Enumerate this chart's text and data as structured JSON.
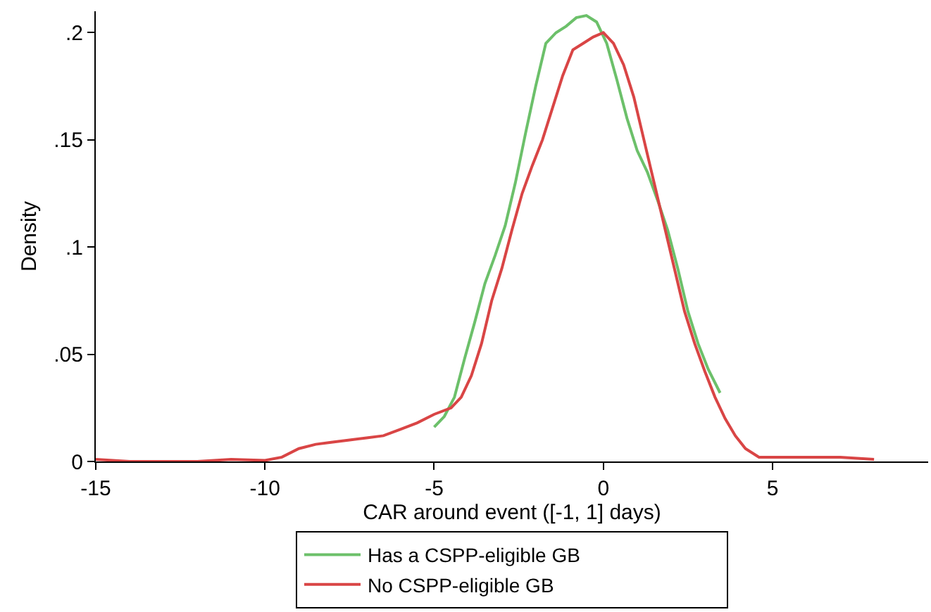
{
  "chart_data": {
    "type": "line",
    "xlabel": "CAR around event ([-1, 1] days)",
    "ylabel": "Density",
    "xlim": [
      -15,
      9.6
    ],
    "xticks": [
      -15,
      -10,
      -5,
      0,
      5
    ],
    "ylim": [
      0,
      0.21
    ],
    "yticks": [
      {
        "value": 0,
        "label": "0"
      },
      {
        "value": 0.05,
        "label": ".05"
      },
      {
        "value": 0.1,
        "label": ".1"
      },
      {
        "value": 0.15,
        "label": ".15"
      },
      {
        "value": 0.2,
        "label": ".2"
      }
    ],
    "legend": "bottom",
    "marker": "none",
    "line_style": "solid",
    "series": [
      {
        "name": "Has a CSPP-eligible GB",
        "color": "#6cc06a",
        "x": [
          -5.0,
          -4.7,
          -4.4,
          -4.1,
          -3.8,
          -3.5,
          -3.2,
          -2.9,
          -2.6,
          -2.3,
          -2.0,
          -1.7,
          -1.4,
          -1.1,
          -0.8,
          -0.5,
          -0.2,
          0.1,
          0.4,
          0.7,
          1.0,
          1.3,
          1.6,
          1.9,
          2.2,
          2.5,
          2.8,
          3.1,
          3.45
        ],
        "values": [
          0.016,
          0.021,
          0.03,
          0.048,
          0.065,
          0.083,
          0.096,
          0.11,
          0.13,
          0.153,
          0.175,
          0.195,
          0.2,
          0.203,
          0.207,
          0.208,
          0.205,
          0.195,
          0.178,
          0.16,
          0.145,
          0.135,
          0.122,
          0.108,
          0.09,
          0.07,
          0.055,
          0.043,
          0.032
        ]
      },
      {
        "name": "No CSPP-eligible GB",
        "color": "#d94545",
        "x": [
          -15,
          -14,
          -13,
          -12,
          -11,
          -10,
          -9.5,
          -9,
          -8.5,
          -8,
          -7.5,
          -7,
          -6.5,
          -6,
          -5.5,
          -5,
          -4.5,
          -4.2,
          -3.9,
          -3.6,
          -3.3,
          -3.0,
          -2.7,
          -2.4,
          -2.1,
          -1.8,
          -1.5,
          -1.2,
          -0.9,
          -0.6,
          -0.3,
          0,
          0.3,
          0.6,
          0.9,
          1.2,
          1.5,
          1.8,
          2.1,
          2.4,
          2.7,
          3.0,
          3.3,
          3.6,
          3.9,
          4.2,
          4.6,
          5,
          6,
          7,
          8
        ],
        "values": [
          0.001,
          0,
          0,
          0,
          0.001,
          0.0005,
          0.002,
          0.006,
          0.008,
          0.009,
          0.01,
          0.011,
          0.012,
          0.015,
          0.018,
          0.022,
          0.025,
          0.03,
          0.04,
          0.055,
          0.075,
          0.09,
          0.108,
          0.125,
          0.138,
          0.15,
          0.165,
          0.18,
          0.192,
          0.195,
          0.198,
          0.2,
          0.195,
          0.185,
          0.17,
          0.15,
          0.13,
          0.11,
          0.09,
          0.07,
          0.055,
          0.042,
          0.03,
          0.02,
          0.012,
          0.006,
          0.002,
          0.002,
          0.002,
          0.002,
          0.001
        ]
      }
    ]
  }
}
